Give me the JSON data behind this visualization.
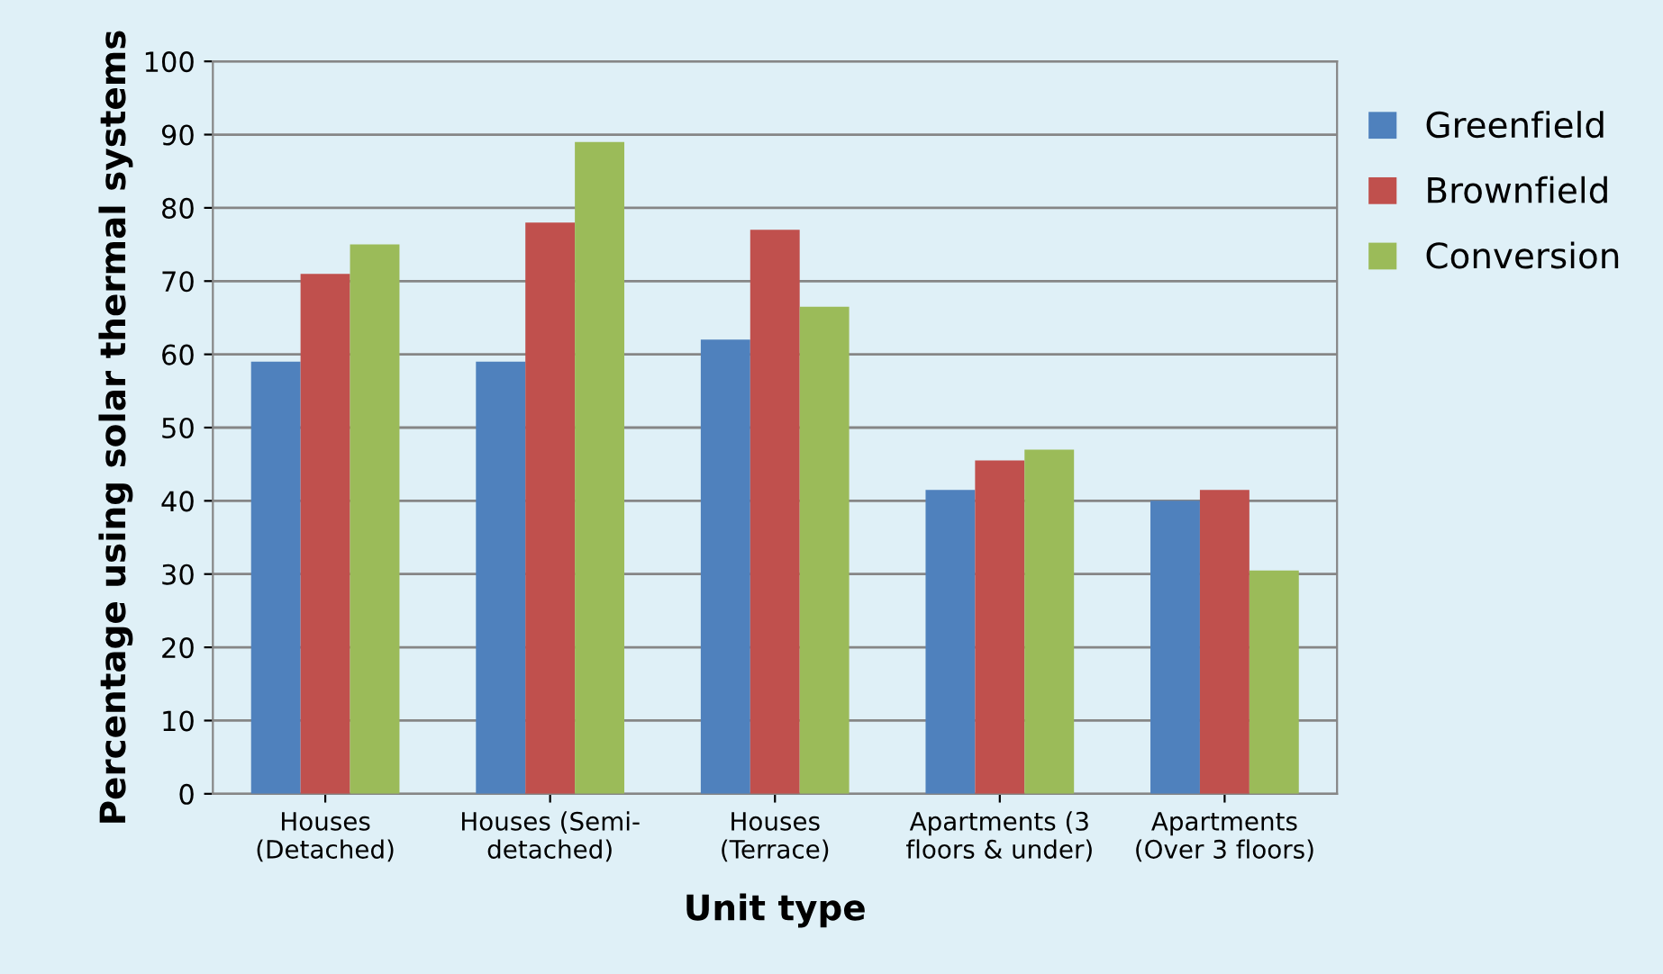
{
  "chart_data": {
    "type": "bar",
    "xlabel": "Unit type",
    "ylabel": "Percentage using solar thermal systems",
    "categories": [
      "Houses\n(Detached)",
      "Houses (Semi-\ndetached)",
      "Houses\n(Terrace)",
      "Apartments (3\nfloors & under)",
      "Apartments\n(Over 3 floors)"
    ],
    "series": [
      {
        "name": "Greenfield",
        "color": "#4f81bd",
        "values": [
          59,
          59,
          62,
          41.5,
          40
        ]
      },
      {
        "name": "Brownfield",
        "color": "#c0504d",
        "values": [
          71,
          78,
          77,
          45.5,
          41.5
        ]
      },
      {
        "name": "Conversion",
        "color": "#9bbb59",
        "values": [
          75,
          89,
          66.5,
          47,
          30.5
        ]
      }
    ],
    "ylim": [
      0,
      100
    ],
    "yticks": [
      0,
      10,
      20,
      30,
      40,
      50,
      60,
      70,
      80,
      90,
      100
    ],
    "grid": "y",
    "legend": "right"
  }
}
